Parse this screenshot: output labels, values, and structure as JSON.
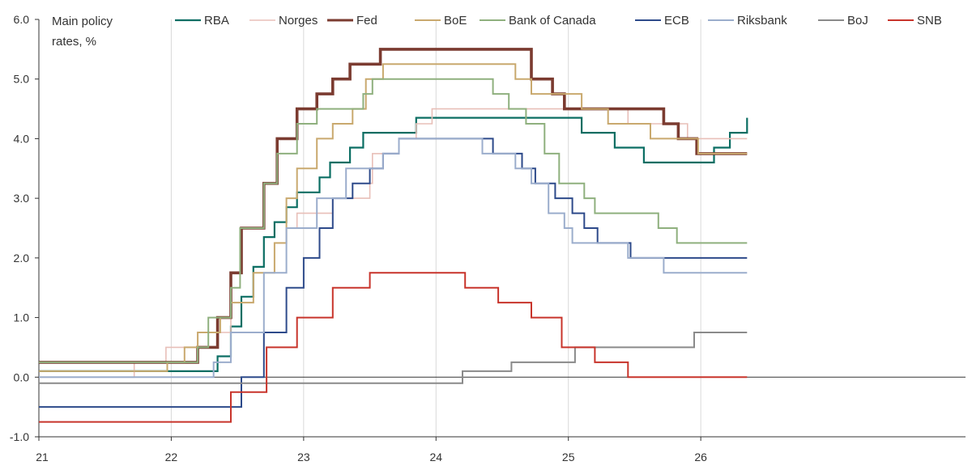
{
  "chart_data": {
    "type": "line",
    "title": "",
    "ylabel": "Main policy rates, %",
    "ylabel_lines": [
      "Main policy",
      "rates, %"
    ],
    "xlabel": "",
    "ylim": [
      -1.0,
      6.0
    ],
    "xlim": [
      21.0,
      28.0
    ],
    "y_ticks": [
      -1.0,
      0.0,
      1.0,
      2.0,
      3.0,
      4.0,
      5.0,
      6.0
    ],
    "y_tick_labels": [
      "-1.0",
      "0.0",
      "1.0",
      "2.0",
      "3.0",
      "4.0",
      "5.0",
      "6.0"
    ],
    "x_ticks": [
      21,
      22,
      23,
      24,
      25,
      26
    ],
    "x_tick_labels": [
      "21",
      "22",
      "23",
      "24",
      "25",
      "26"
    ],
    "grid": "vertical at year boundaries",
    "legend_position": "top",
    "series": [
      {
        "name": "RBA",
        "color": "#0b6e63",
        "width": 2.2,
        "points": [
          [
            21.0,
            0.1
          ],
          [
            22.35,
            0.35
          ],
          [
            22.45,
            0.85
          ],
          [
            22.53,
            1.35
          ],
          [
            22.62,
            1.85
          ],
          [
            22.7,
            2.35
          ],
          [
            22.78,
            2.6
          ],
          [
            22.87,
            2.85
          ],
          [
            22.95,
            3.1
          ],
          [
            23.12,
            3.35
          ],
          [
            23.2,
            3.6
          ],
          [
            23.35,
            3.85
          ],
          [
            23.45,
            4.1
          ],
          [
            23.85,
            4.35
          ],
          [
            25.1,
            4.1
          ],
          [
            25.35,
            3.85
          ],
          [
            25.57,
            3.6
          ],
          [
            26.1,
            3.85
          ],
          [
            26.22,
            4.1
          ],
          [
            26.35,
            4.35
          ]
        ]
      },
      {
        "name": "Norges",
        "color": "#e8bfb8",
        "width": 1.6,
        "points": [
          [
            21.0,
            0.0
          ],
          [
            21.72,
            0.25
          ],
          [
            21.96,
            0.5
          ],
          [
            22.2,
            0.75
          ],
          [
            22.45,
            1.25
          ],
          [
            22.62,
            1.75
          ],
          [
            22.78,
            2.25
          ],
          [
            22.87,
            2.5
          ],
          [
            22.95,
            2.75
          ],
          [
            23.22,
            3.0
          ],
          [
            23.5,
            3.25
          ],
          [
            23.52,
            3.75
          ],
          [
            23.72,
            4.0
          ],
          [
            23.85,
            4.25
          ],
          [
            23.97,
            4.5
          ],
          [
            25.45,
            4.25
          ],
          [
            25.9,
            4.0
          ],
          [
            26.35,
            4.0
          ]
        ]
      },
      {
        "name": "Fed",
        "color": "#7b3b30",
        "width": 3.6,
        "points": [
          [
            21.0,
            0.25
          ],
          [
            22.2,
            0.5
          ],
          [
            22.35,
            1.0
          ],
          [
            22.45,
            1.75
          ],
          [
            22.53,
            2.5
          ],
          [
            22.7,
            3.25
          ],
          [
            22.8,
            4.0
          ],
          [
            22.95,
            4.5
          ],
          [
            23.1,
            4.75
          ],
          [
            23.22,
            5.0
          ],
          [
            23.35,
            5.25
          ],
          [
            23.58,
            5.5
          ],
          [
            24.72,
            5.0
          ],
          [
            24.88,
            4.75
          ],
          [
            24.97,
            4.5
          ],
          [
            25.72,
            4.25
          ],
          [
            25.83,
            4.0
          ],
          [
            25.97,
            3.75
          ],
          [
            26.35,
            3.75
          ]
        ]
      },
      {
        "name": "BoE",
        "color": "#c9a96e",
        "width": 2.0,
        "points": [
          [
            21.0,
            0.1
          ],
          [
            21.97,
            0.25
          ],
          [
            22.1,
            0.5
          ],
          [
            22.2,
            0.75
          ],
          [
            22.37,
            1.0
          ],
          [
            22.45,
            1.25
          ],
          [
            22.62,
            1.75
          ],
          [
            22.78,
            2.25
          ],
          [
            22.87,
            3.0
          ],
          [
            22.95,
            3.5
          ],
          [
            23.1,
            4.0
          ],
          [
            23.22,
            4.25
          ],
          [
            23.37,
            4.5
          ],
          [
            23.47,
            5.0
          ],
          [
            23.6,
            5.25
          ],
          [
            24.6,
            5.0
          ],
          [
            24.72,
            4.75
          ],
          [
            24.87,
            4.75
          ],
          [
            25.1,
            4.5
          ],
          [
            25.3,
            4.25
          ],
          [
            25.53,
            4.25
          ],
          [
            25.62,
            4.0
          ],
          [
            25.98,
            3.75
          ],
          [
            26.35,
            3.75
          ]
        ]
      },
      {
        "name": "Bank of Canada",
        "color": "#8fb07e",
        "width": 2.0,
        "points": [
          [
            21.0,
            0.25
          ],
          [
            22.2,
            0.5
          ],
          [
            22.28,
            1.0
          ],
          [
            22.45,
            1.5
          ],
          [
            22.52,
            2.5
          ],
          [
            22.7,
            3.25
          ],
          [
            22.8,
            3.75
          ],
          [
            22.95,
            4.25
          ],
          [
            23.1,
            4.5
          ],
          [
            23.45,
            4.75
          ],
          [
            23.52,
            5.0
          ],
          [
            24.43,
            4.75
          ],
          [
            24.55,
            4.5
          ],
          [
            24.68,
            4.25
          ],
          [
            24.82,
            3.75
          ],
          [
            24.93,
            3.25
          ],
          [
            25.12,
            3.0
          ],
          [
            25.2,
            2.75
          ],
          [
            25.68,
            2.5
          ],
          [
            25.82,
            2.25
          ],
          [
            26.35,
            2.25
          ]
        ]
      },
      {
        "name": "ECB",
        "color": "#2d4a8a",
        "width": 2.0,
        "points": [
          [
            21.0,
            -0.5
          ],
          [
            22.53,
            0.0
          ],
          [
            22.7,
            0.75
          ],
          [
            22.87,
            1.5
          ],
          [
            23.0,
            2.0
          ],
          [
            23.12,
            2.5
          ],
          [
            23.22,
            3.0
          ],
          [
            23.37,
            3.25
          ],
          [
            23.5,
            3.5
          ],
          [
            23.6,
            3.75
          ],
          [
            23.72,
            4.0
          ],
          [
            24.43,
            3.75
          ],
          [
            24.65,
            3.5
          ],
          [
            24.75,
            3.25
          ],
          [
            24.9,
            3.0
          ],
          [
            25.03,
            2.75
          ],
          [
            25.12,
            2.5
          ],
          [
            25.22,
            2.25
          ],
          [
            25.47,
            2.0
          ],
          [
            26.35,
            2.0
          ]
        ]
      },
      {
        "name": "Riksbank",
        "color": "#9badcc",
        "width": 2.0,
        "points": [
          [
            21.0,
            0.0
          ],
          [
            22.32,
            0.25
          ],
          [
            22.45,
            0.75
          ],
          [
            22.7,
            1.75
          ],
          [
            22.87,
            2.5
          ],
          [
            23.1,
            3.0
          ],
          [
            23.32,
            3.5
          ],
          [
            23.6,
            3.75
          ],
          [
            23.72,
            4.0
          ],
          [
            24.35,
            3.75
          ],
          [
            24.6,
            3.5
          ],
          [
            24.72,
            3.25
          ],
          [
            24.85,
            2.75
          ],
          [
            24.97,
            2.5
          ],
          [
            25.03,
            2.25
          ],
          [
            25.45,
            2.0
          ],
          [
            25.72,
            1.75
          ],
          [
            26.35,
            1.75
          ]
        ]
      },
      {
        "name": "BoJ",
        "color": "#8a8a8a",
        "width": 2.0,
        "points": [
          [
            21.0,
            -0.1
          ],
          [
            24.2,
            0.1
          ],
          [
            24.57,
            0.25
          ],
          [
            25.05,
            0.5
          ],
          [
            25.95,
            0.75
          ],
          [
            26.35,
            0.75
          ]
        ]
      },
      {
        "name": "SNB",
        "color": "#c8342b",
        "width": 2.0,
        "points": [
          [
            21.0,
            -0.75
          ],
          [
            22.45,
            -0.25
          ],
          [
            22.72,
            0.5
          ],
          [
            22.95,
            1.0
          ],
          [
            23.22,
            1.5
          ],
          [
            23.5,
            1.75
          ],
          [
            24.22,
            1.5
          ],
          [
            24.47,
            1.25
          ],
          [
            24.72,
            1.0
          ],
          [
            24.95,
            0.5
          ],
          [
            25.2,
            0.25
          ],
          [
            25.45,
            0.0
          ],
          [
            26.35,
            0.0
          ]
        ]
      }
    ]
  }
}
